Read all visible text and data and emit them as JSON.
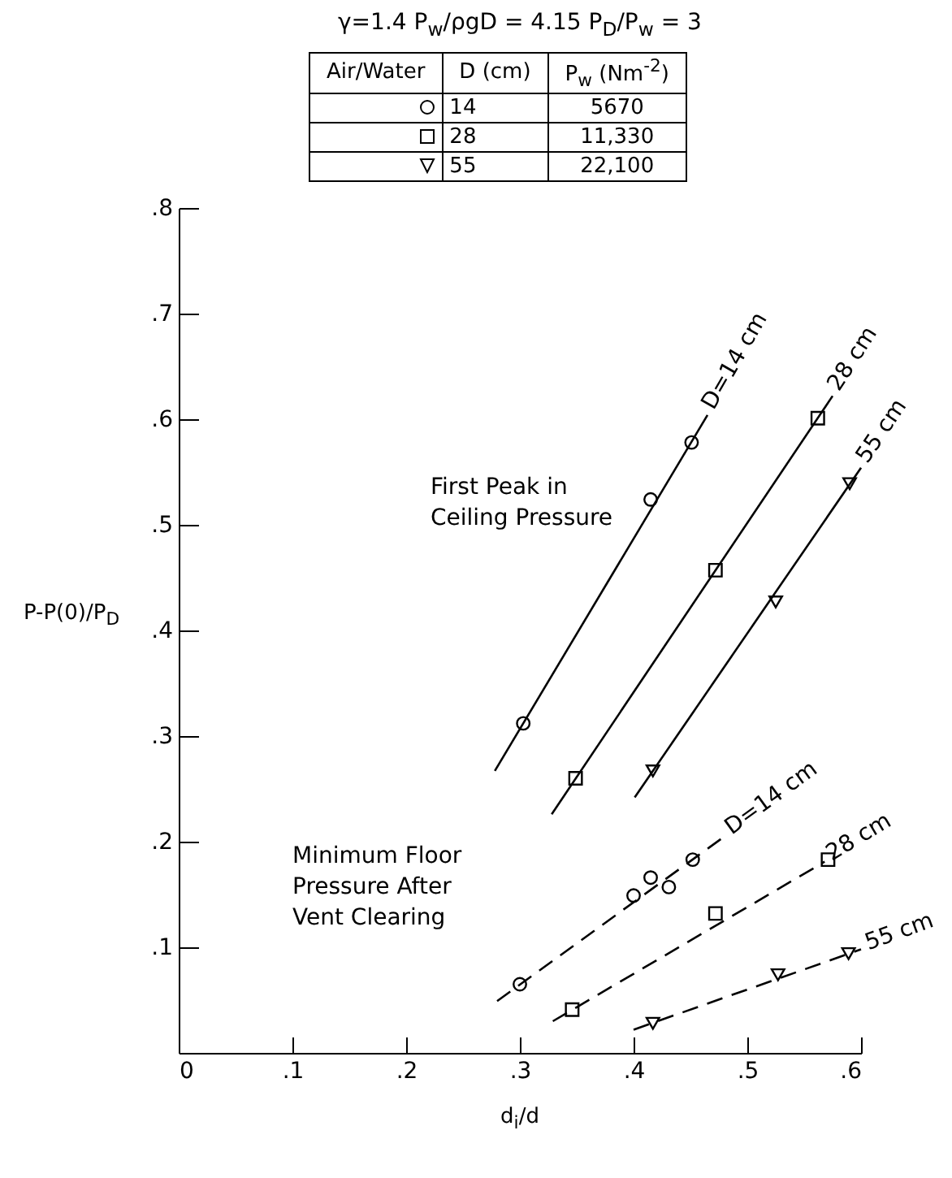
{
  "chart_data": {
    "type": "scatter",
    "subtitle": "γ=1.4   P$_{w}$/ρgD = 4.15   P$_{D}$/P$_{w}$ = 3",
    "xlabel": "d$_{i}$/d",
    "ylabel": "P-P(0)/P$_{D}$",
    "xlim": [
      0,
      0.6
    ],
    "ylim": [
      0,
      0.8
    ],
    "xticks": [
      {
        "value": 0,
        "label": "0"
      },
      {
        "value": 0.1,
        "label": ".1"
      },
      {
        "value": 0.2,
        "label": ".2"
      },
      {
        "value": 0.3,
        "label": ".3"
      },
      {
        "value": 0.4,
        "label": ".4"
      },
      {
        "value": 0.5,
        "label": ".5"
      },
      {
        "value": 0.6,
        "label": ".6"
      }
    ],
    "yticks": [
      {
        "value": 0.1,
        "label": ".1"
      },
      {
        "value": 0.2,
        "label": ".2"
      },
      {
        "value": 0.3,
        "label": ".3"
      },
      {
        "value": 0.4,
        "label": ".4"
      },
      {
        "value": 0.5,
        "label": ".5"
      },
      {
        "value": 0.6,
        "label": ".6"
      },
      {
        "value": 0.7,
        "label": ".7"
      },
      {
        "value": 0.8,
        "label": ".8"
      }
    ],
    "legend": "top",
    "series": [
      {
        "name": "14",
        "marker": "circle",
        "color": "#000000",
        "x": [
          0.303,
          0.415,
          0.451
        ],
        "values": [
          0.312,
          0.524,
          0.578
        ]
      },
      {
        "name": "28",
        "marker": "square",
        "color": "#000000",
        "x": [
          0.349,
          0.472,
          0.562
        ],
        "values": [
          0.26,
          0.457,
          0.601
        ]
      },
      {
        "name": "55",
        "marker": "triangle",
        "color": "#000000",
        "x": [
          0.417,
          0.525,
          0.59
        ],
        "values": [
          0.267,
          0.427,
          0.539
        ]
      },
      {
        "marker": "circle",
        "color": "#000000",
        "x": [
          0.3,
          0.4,
          0.415,
          0.431,
          0.452
        ],
        "values": [
          0.065,
          0.149,
          0.166,
          0.157,
          0.183
        ]
      },
      {
        "marker": "square",
        "color": "#000000",
        "x": [
          0.346,
          0.472,
          0.571
        ],
        "values": [
          0.041,
          0.132,
          0.183
        ]
      },
      {
        "marker": "triangle",
        "color": "#000000",
        "x": [
          0.417,
          0.527,
          0.589
        ],
        "values": [
          0.028,
          0.074,
          0.094
        ]
      },
      {
        "type": "line",
        "line_style": "solid",
        "color": "#000000",
        "x": [
          0.278,
          0.465
        ],
        "values": [
          0.267,
          0.604
        ]
      },
      {
        "type": "line",
        "line_style": "solid",
        "color": "#000000",
        "x": [
          0.328,
          0.575
        ],
        "values": [
          0.226,
          0.622
        ]
      },
      {
        "type": "line",
        "line_style": "solid",
        "color": "#000000",
        "x": [
          0.401,
          0.6
        ],
        "values": [
          0.242,
          0.554
        ]
      },
      {
        "type": "line",
        "line_style": "dashed",
        "color": "#000000",
        "x": [
          0.28,
          0.48
        ],
        "values": [
          0.049,
          0.205
        ]
      },
      {
        "type": "line",
        "line_style": "dashed",
        "color": "#000000",
        "x": [
          0.329,
          0.568
        ],
        "values": [
          0.03,
          0.181
        ]
      },
      {
        "type": "line",
        "line_style": "dashed",
        "color": "#000000",
        "x": [
          0.4,
          0.6
        ],
        "values": [
          0.022,
          0.098
        ]
      }
    ],
    "annotations": [
      "First Peak in\nCeiling Pressure",
      "Minimum Floor\nPressure After\nVent Clearing",
      "Air/Water",
      "D (cm)",
      "P$_{w}$ (Nm$^{-2}$)",
      "5670",
      "11,330",
      "22,100",
      {
        "text": "D=14 cm",
        "x": 0.465,
        "y": 0.604
      },
      {
        "text": "28 cm",
        "x": 0.575,
        "y": 0.622
      },
      {
        "text": "55 cm",
        "x": 0.6,
        "y": 0.554
      },
      {
        "text": "D=14 cm",
        "x": 0.48,
        "y": 0.205
      },
      {
        "text": "28 cm",
        "x": 0.568,
        "y": 0.181
      },
      {
        "text": "55 cm",
        "x": 0.6,
        "y": 0.098
      }
    ]
  }
}
